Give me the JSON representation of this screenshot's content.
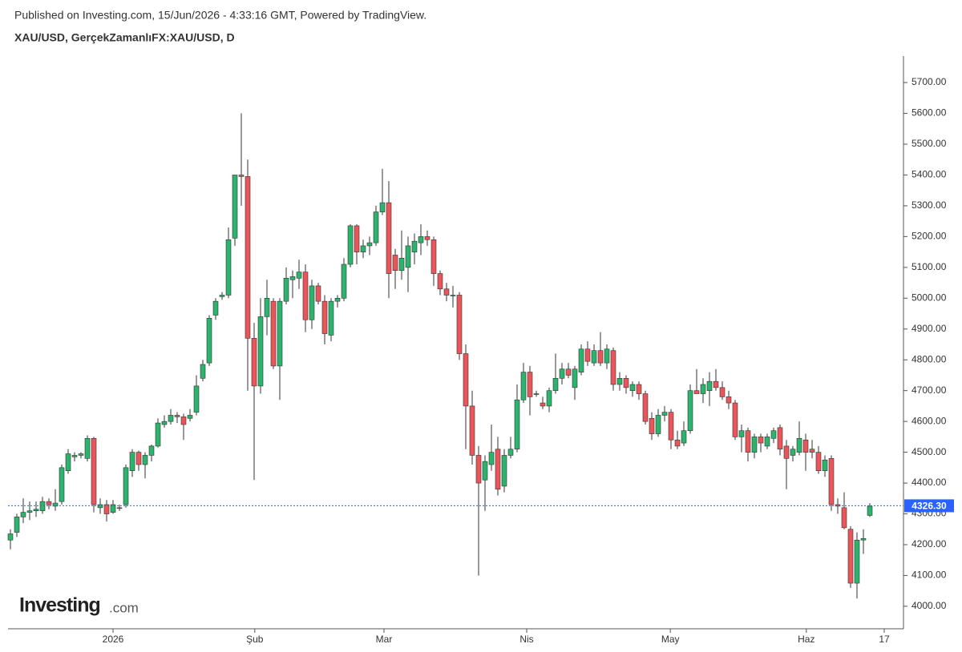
{
  "header": {
    "published": "Published on Investing.com, 15/Jun/2026 - 4:33:16 GMT, Powered by TradingView.",
    "symbol": "XAU/USD, GerçekZamanlıFX:XAU/USD, D"
  },
  "logo": {
    "name": "Investing",
    "suffix": ".com"
  },
  "chart_data": {
    "type": "candlestick",
    "up_color": "#2db36c",
    "down_color": "#e8565a",
    "categories": [
      null,
      null,
      null,
      null,
      null,
      null,
      null,
      null,
      null,
      null,
      null,
      null,
      null,
      null,
      null,
      null,
      null,
      null,
      null,
      null,
      null,
      null,
      null,
      null,
      null,
      null,
      null,
      null,
      null,
      null,
      null,
      null,
      null,
      null,
      null,
      null,
      null,
      null,
      null,
      null,
      null,
      null,
      null,
      null,
      null,
      null,
      null,
      null,
      null,
      null,
      null,
      null,
      null,
      null,
      null,
      null,
      null,
      null,
      null,
      null,
      null,
      null,
      null,
      null,
      null,
      null,
      null,
      null,
      null,
      null,
      null,
      null,
      null,
      null,
      null,
      null,
      null,
      null,
      null,
      null,
      null,
      null,
      null,
      null,
      null,
      null,
      null,
      null,
      null,
      null,
      null,
      null,
      null,
      null,
      null,
      null,
      null,
      null,
      null,
      null,
      null,
      null,
      null,
      null,
      null,
      null,
      null,
      null,
      null,
      null,
      null,
      null,
      null,
      null,
      null,
      null,
      null,
      null,
      null,
      null,
      null,
      null,
      null,
      null,
      null,
      null,
      null,
      null,
      null,
      null,
      null,
      null,
      null,
      null,
      null
    ],
    "open": [
      4215,
      4240,
      4290,
      4305,
      4310,
      4310,
      4340,
      4325,
      4340,
      4440,
      4485,
      4490,
      4480,
      4545,
      4320,
      4330,
      4305,
      4320,
      4330,
      4440,
      4500,
      4460,
      4490,
      4520,
      4590,
      4600,
      4620,
      4615,
      4610,
      4630,
      4740,
      4790,
      4945,
      5005,
      5010,
      5195,
      5400,
      5395,
      4870,
      4715,
      4940,
      4990,
      4780,
      4990,
      5060,
      5065,
      5085,
      4930,
      5040,
      4990,
      4880,
      4990,
      5000,
      5110,
      5235,
      5150,
      5170,
      5180,
      5280,
      5310,
      5140,
      5090,
      5100,
      5150,
      5180,
      5200,
      5190,
      5080,
      5030,
      5010,
      5010,
      4820,
      4650,
      4490,
      4410,
      4460,
      4510,
      4390,
      4490,
      4510,
      4670,
      4760,
      4690,
      4660,
      4650,
      4700,
      4740,
      4770,
      4710,
      4760,
      4835,
      4790,
      4830,
      4790,
      4830,
      4720,
      4740,
      4700,
      4720,
      4690,
      4610,
      4560,
      4620,
      4630,
      4540,
      4530,
      4570,
      4700,
      4690,
      4700,
      4730,
      4710,
      4680,
      4660,
      4550,
      4570,
      4500,
      4550,
      4520,
      4545,
      4580,
      4520,
      4490,
      4500,
      4540,
      4510,
      4500,
      4440,
      4480,
      4330,
      4320,
      4250,
      4075,
      4215,
      4295
    ],
    "high": [
      4250,
      4300,
      4350,
      4340,
      4340,
      4355,
      4350,
      4380,
      4460,
      4510,
      4500,
      4500,
      4555,
      4550,
      4350,
      4345,
      4345,
      4330,
      4460,
      4510,
      4505,
      4500,
      4525,
      4610,
      4620,
      4640,
      4630,
      4625,
      4640,
      4750,
      4800,
      4945,
      5000,
      5020,
      5230,
      5400,
      5600,
      5450,
      4920,
      5000,
      5060,
      5000,
      5000,
      5100,
      5090,
      5125,
      5110,
      5060,
      5050,
      5010,
      5000,
      5010,
      5130,
      5240,
      5240,
      5190,
      5200,
      5300,
      5420,
      5380,
      5160,
      5220,
      5200,
      5210,
      5240,
      5220,
      5200,
      5090,
      5050,
      5040,
      5020,
      4850,
      4700,
      4520,
      4490,
      4590,
      4550,
      4510,
      4550,
      4720,
      4790,
      4780,
      4700,
      4680,
      4710,
      4820,
      4790,
      4790,
      4780,
      4850,
      4860,
      4850,
      4890,
      4850,
      4840,
      4760,
      4750,
      4730,
      4730,
      4700,
      4630,
      4640,
      4650,
      4640,
      4570,
      4600,
      4720,
      4770,
      4740,
      4760,
      4770,
      4730,
      4700,
      4670,
      4590,
      4580,
      4560,
      4560,
      4560,
      4580,
      4590,
      4540,
      4520,
      4600,
      4560,
      4540,
      4520,
      4490,
      4490,
      4350,
      4370,
      4260,
      4240,
      4250,
      4335
    ],
    "low": [
      4185,
      4225,
      4270,
      4280,
      4290,
      4300,
      4315,
      4310,
      4330,
      4430,
      4470,
      4480,
      4470,
      4305,
      4300,
      4275,
      4300,
      4310,
      4320,
      4420,
      4440,
      4415,
      4470,
      4515,
      4580,
      4590,
      4595,
      4540,
      4600,
      4620,
      4730,
      4780,
      4930,
      4995,
      5000,
      5170,
      5300,
      4700,
      4410,
      4690,
      4880,
      4770,
      4670,
      4980,
      5000,
      5030,
      4890,
      4900,
      4980,
      4850,
      4860,
      4970,
      4990,
      5100,
      5110,
      5130,
      5140,
      5170,
      5270,
      5000,
      5030,
      5060,
      5020,
      5110,
      5140,
      5170,
      5040,
      5010,
      4990,
      4970,
      4800,
      4510,
      4460,
      4100,
      4310,
      4440,
      4360,
      4370,
      4480,
      4500,
      4660,
      4620,
      4680,
      4640,
      4630,
      4690,
      4720,
      4740,
      4670,
      4750,
      4780,
      4780,
      4780,
      4770,
      4700,
      4700,
      4690,
      4680,
      4670,
      4590,
      4540,
      4550,
      4600,
      4510,
      4510,
      4520,
      4560,
      4690,
      4660,
      4650,
      4700,
      4670,
      4640,
      4540,
      4500,
      4470,
      4480,
      4500,
      4510,
      4530,
      4490,
      4380,
      4470,
      4490,
      4440,
      4480,
      4430,
      4420,
      4310,
      4300,
      4250,
      4060,
      4025,
      4170,
      4290
    ],
    "close": [
      4235,
      4290,
      4305,
      4310,
      4315,
      4340,
      4330,
      4335,
      4450,
      4495,
      4490,
      4495,
      4545,
      4330,
      4330,
      4300,
      4330,
      4318,
      4450,
      4500,
      4460,
      4490,
      4520,
      4595,
      4600,
      4620,
      4615,
      4590,
      4620,
      4715,
      4785,
      4935,
      4990,
      5010,
      5190,
      5400,
      5395,
      4870,
      4715,
      4940,
      5000,
      4780,
      4990,
      5065,
      5070,
      5085,
      4930,
      5040,
      4990,
      4885,
      4990,
      5000,
      5110,
      5235,
      5150,
      5170,
      5180,
      5280,
      5310,
      5080,
      5090,
      5130,
      5170,
      5185,
      5200,
      5190,
      5080,
      5030,
      5010,
      5010,
      4820,
      4650,
      4490,
      4400,
      4470,
      4500,
      4380,
      4490,
      4510,
      4670,
      4760,
      4680,
      4690,
      4650,
      4700,
      4740,
      4770,
      4750,
      4770,
      4835,
      4795,
      4830,
      4790,
      4835,
      4720,
      4740,
      4710,
      4720,
      4690,
      4600,
      4560,
      4620,
      4630,
      4540,
      4520,
      4570,
      4700,
      4690,
      4720,
      4730,
      4710,
      4680,
      4660,
      4550,
      4570,
      4500,
      4550,
      4530,
      4550,
      4570,
      4510,
      4480,
      4510,
      4545,
      4500,
      4500,
      4440,
      4475,
      4330,
      4325,
      4255,
      4075,
      4215,
      4220,
      4325
    ],
    "xticks": [
      {
        "value": 16,
        "label": "2026"
      },
      {
        "value": 38.1,
        "label": "Şub"
      },
      {
        "value": 58.25,
        "label": "Mar"
      },
      {
        "value": 80.5,
        "label": "Nis"
      },
      {
        "value": 102.9,
        "label": "May"
      },
      {
        "value": 124.1,
        "label": "Haz"
      },
      {
        "value": 136.25,
        "label": "17"
      }
    ],
    "ylim": [
      3927,
      5786
    ],
    "yticks": [
      {
        "value": 4000,
        "label": "4000.00"
      },
      {
        "value": 4100,
        "label": "4100.00"
      },
      {
        "value": 4200,
        "label": "4200.00"
      },
      {
        "value": 4300,
        "label": "4300.00"
      },
      {
        "value": 4400,
        "label": "4400.00"
      },
      {
        "value": 4500,
        "label": "4500.00"
      },
      {
        "value": 4600,
        "label": "4600.00"
      },
      {
        "value": 4700,
        "label": "4700.00"
      },
      {
        "value": 4800,
        "label": "4800.00"
      },
      {
        "value": 4900,
        "label": "4900.00"
      },
      {
        "value": 5000,
        "label": "5000.00"
      },
      {
        "value": 5100,
        "label": "5100.00"
      },
      {
        "value": 5200,
        "label": "5200.00"
      },
      {
        "value": 5300,
        "label": "5300.00"
      },
      {
        "value": 5400,
        "label": "5400.00"
      },
      {
        "value": 5500,
        "label": "5500.00"
      },
      {
        "value": 5600,
        "label": "5600.00"
      },
      {
        "value": 5700,
        "label": "5700.00"
      }
    ],
    "last_price": {
      "value": 4326.3,
      "label": "4326.30"
    },
    "last_price_color": "#2962ff"
  }
}
